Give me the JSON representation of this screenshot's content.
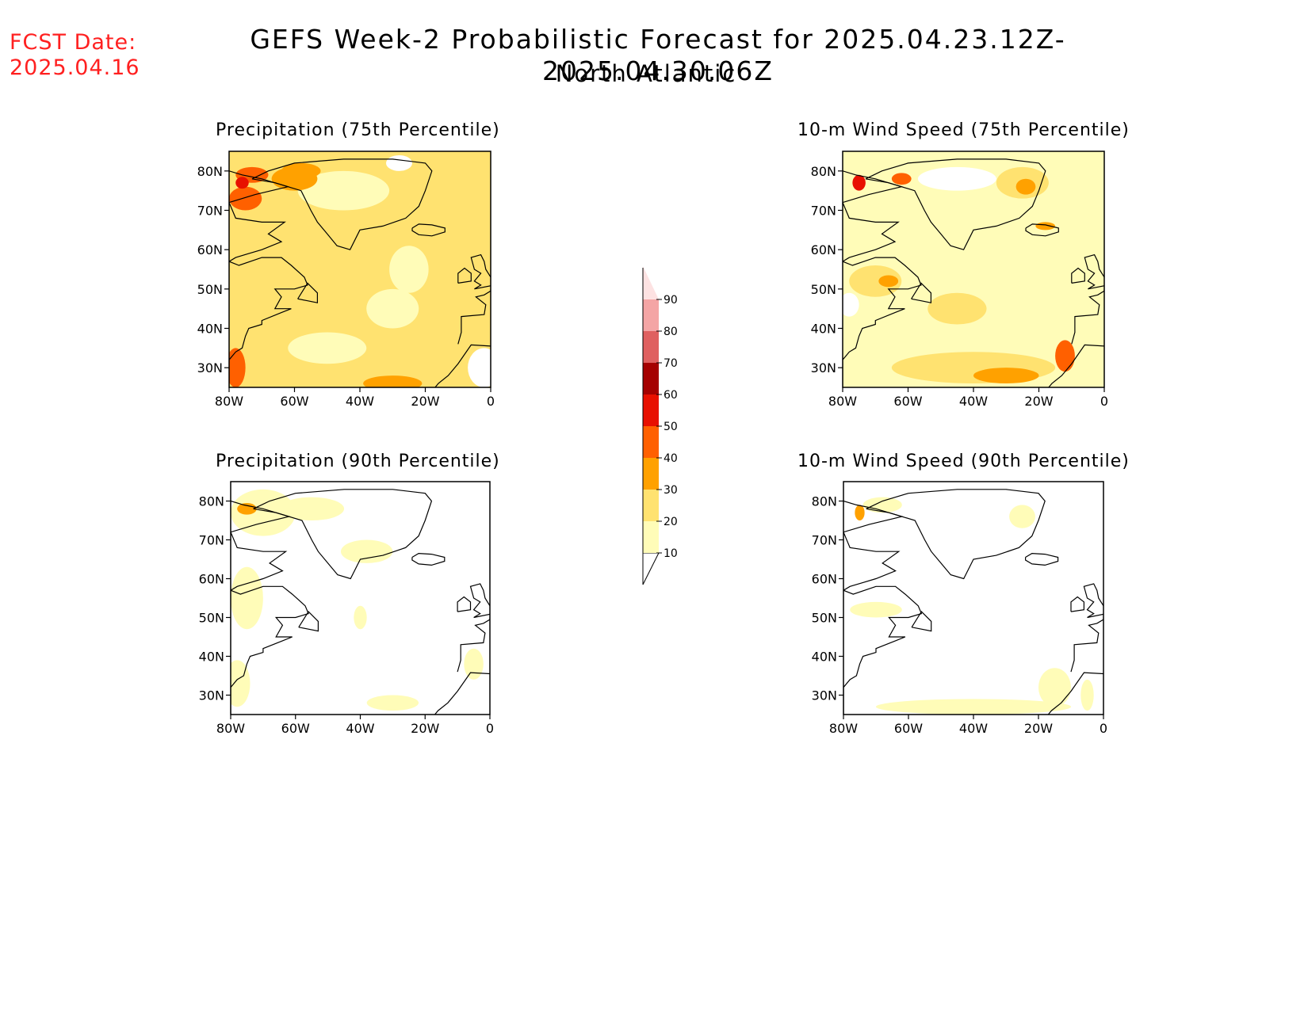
{
  "header": {
    "fcst_label": "FCST Date:",
    "fcst_date": "2025.04.16",
    "title": "GEFS Week-2 Probabilistic Forecast for 2025.04.23.12Z-2025.04.30.06Z",
    "subtitle": "North Atlantic"
  },
  "colorbar": {
    "levels": [
      10,
      20,
      30,
      40,
      50,
      60,
      70,
      80,
      90
    ],
    "colors": [
      "#fffcb8",
      "#ffe270",
      "#ffa100",
      "#ff6000",
      "#e81000",
      "#a50000",
      "#df6060",
      "#f4a5a5",
      "#fde2e2"
    ]
  },
  "maps": [
    {
      "title": "Precipitation (75th Percentile)",
      "lon_labels": [
        "80W",
        "60W",
        "40W",
        "20W",
        "0"
      ],
      "lat_labels": [
        "80N",
        "70N",
        "60N",
        "50N",
        "40N",
        "30N"
      ],
      "lon_range": [
        -80,
        0
      ],
      "lat_range": [
        25,
        85
      ],
      "background": "#ffe270",
      "blobs": [
        {
          "lon": -50,
          "lat": 35,
          "rx": 12,
          "ry": 4,
          "color": "#fffcb8"
        },
        {
          "lon": -30,
          "lat": 45,
          "rx": 8,
          "ry": 5,
          "color": "#fffcb8"
        },
        {
          "lon": -45,
          "lat": 75,
          "rx": 14,
          "ry": 5,
          "color": "#fffcb8"
        },
        {
          "lon": -25,
          "lat": 55,
          "rx": 6,
          "ry": 6,
          "color": "#fffcb8"
        },
        {
          "lon": -2,
          "lat": 30,
          "rx": 5,
          "ry": 5,
          "color": "#ffffff"
        },
        {
          "lon": -28,
          "lat": 82,
          "rx": 4,
          "ry": 2,
          "color": "#ffffff"
        },
        {
          "lon": -75,
          "lat": 73,
          "rx": 5,
          "ry": 3,
          "color": "#ff6000"
        },
        {
          "lon": -73,
          "lat": 79,
          "rx": 5,
          "ry": 2,
          "color": "#ff6000"
        },
        {
          "lon": -58,
          "lat": 80,
          "rx": 6,
          "ry": 2,
          "color": "#ffa100"
        },
        {
          "lon": -78,
          "lat": 30,
          "rx": 3,
          "ry": 5,
          "color": "#ff6000"
        },
        {
          "lon": -30,
          "lat": 26,
          "rx": 9,
          "ry": 2,
          "color": "#ffa100"
        },
        {
          "lon": -60,
          "lat": 78,
          "rx": 7,
          "ry": 3,
          "color": "#ffa100"
        },
        {
          "lon": -76,
          "lat": 77,
          "rx": 2,
          "ry": 1.5,
          "color": "#e81000"
        }
      ]
    },
    {
      "title": "10-m Wind Speed (75th Percentile)",
      "lon_labels": [
        "80W",
        "60W",
        "40W",
        "20W",
        "0"
      ],
      "lat_labels": [
        "80N",
        "70N",
        "60N",
        "50N",
        "40N",
        "30N"
      ],
      "lon_range": [
        -80,
        0
      ],
      "lat_range": [
        25,
        85
      ],
      "background": "#fffcb8",
      "blobs": [
        {
          "lon": -45,
          "lat": 45,
          "rx": 9,
          "ry": 4,
          "color": "#ffe270"
        },
        {
          "lon": -40,
          "lat": 30,
          "rx": 25,
          "ry": 4,
          "color": "#ffe270"
        },
        {
          "lon": -25,
          "lat": 77,
          "rx": 8,
          "ry": 4,
          "color": "#ffe270"
        },
        {
          "lon": -70,
          "lat": 52,
          "rx": 8,
          "ry": 4,
          "color": "#ffe270"
        },
        {
          "lon": -30,
          "lat": 28,
          "rx": 10,
          "ry": 2,
          "color": "#ffa100"
        },
        {
          "lon": -12,
          "lat": 33,
          "rx": 3,
          "ry": 4,
          "color": "#ff6000"
        },
        {
          "lon": -62,
          "lat": 78,
          "rx": 3,
          "ry": 1.5,
          "color": "#ff6000"
        },
        {
          "lon": -24,
          "lat": 76,
          "rx": 3,
          "ry": 2,
          "color": "#ffa100"
        },
        {
          "lon": -45,
          "lat": 78,
          "rx": 12,
          "ry": 3,
          "color": "#ffffff"
        },
        {
          "lon": -78,
          "lat": 46,
          "rx": 3,
          "ry": 3,
          "color": "#ffffff"
        },
        {
          "lon": -75,
          "lat": 77,
          "rx": 2,
          "ry": 2,
          "color": "#e81000"
        },
        {
          "lon": -66,
          "lat": 52,
          "rx": 3,
          "ry": 1.5,
          "color": "#ffa100"
        },
        {
          "lon": -18,
          "lat": 66,
          "rx": 3,
          "ry": 1,
          "color": "#ffa100"
        }
      ]
    },
    {
      "title": "Precipitation (90th Percentile)",
      "lon_labels": [
        "80W",
        "60W",
        "40W",
        "20W",
        "0"
      ],
      "lat_labels": [
        "80N",
        "70N",
        "60N",
        "50N",
        "40N",
        "30N"
      ],
      "lon_range": [
        -80,
        0
      ],
      "lat_range": [
        25,
        85
      ],
      "background": "#ffffff",
      "blobs": [
        {
          "lon": -70,
          "lat": 77,
          "rx": 10,
          "ry": 6,
          "color": "#fffcb8"
        },
        {
          "lon": -55,
          "lat": 78,
          "rx": 10,
          "ry": 3,
          "color": "#fffcb8"
        },
        {
          "lon": -75,
          "lat": 55,
          "rx": 5,
          "ry": 8,
          "color": "#fffcb8"
        },
        {
          "lon": -78,
          "lat": 33,
          "rx": 4,
          "ry": 6,
          "color": "#fffcb8"
        },
        {
          "lon": -30,
          "lat": 28,
          "rx": 8,
          "ry": 2,
          "color": "#fffcb8"
        },
        {
          "lon": -5,
          "lat": 38,
          "rx": 3,
          "ry": 4,
          "color": "#fffcb8"
        },
        {
          "lon": -40,
          "lat": 50,
          "rx": 2,
          "ry": 3,
          "color": "#fffcb8"
        },
        {
          "lon": -38,
          "lat": 67,
          "rx": 8,
          "ry": 3,
          "color": "#fffcb8"
        },
        {
          "lon": -75,
          "lat": 78,
          "rx": 3,
          "ry": 1.5,
          "color": "#ffa100"
        }
      ]
    },
    {
      "title": "10-m Wind Speed (90th Percentile)",
      "lon_labels": [
        "80W",
        "60W",
        "40W",
        "20W",
        "0"
      ],
      "lat_labels": [
        "80N",
        "70N",
        "60N",
        "50N",
        "40N",
        "30N"
      ],
      "lon_range": [
        -80,
        0
      ],
      "lat_range": [
        25,
        85
      ],
      "background": "#ffffff",
      "blobs": [
        {
          "lon": -40,
          "lat": 27,
          "rx": 30,
          "ry": 2,
          "color": "#fffcb8"
        },
        {
          "lon": -15,
          "lat": 32,
          "rx": 5,
          "ry": 5,
          "color": "#fffcb8"
        },
        {
          "lon": -70,
          "lat": 52,
          "rx": 8,
          "ry": 2,
          "color": "#fffcb8"
        },
        {
          "lon": -25,
          "lat": 76,
          "rx": 4,
          "ry": 3,
          "color": "#fffcb8"
        },
        {
          "lon": -68,
          "lat": 79,
          "rx": 6,
          "ry": 2,
          "color": "#fffcb8"
        },
        {
          "lon": -5,
          "lat": 30,
          "rx": 2,
          "ry": 4,
          "color": "#fffcb8"
        },
        {
          "lon": -75,
          "lat": 77,
          "rx": 1.5,
          "ry": 2,
          "color": "#ffa100"
        }
      ]
    }
  ]
}
